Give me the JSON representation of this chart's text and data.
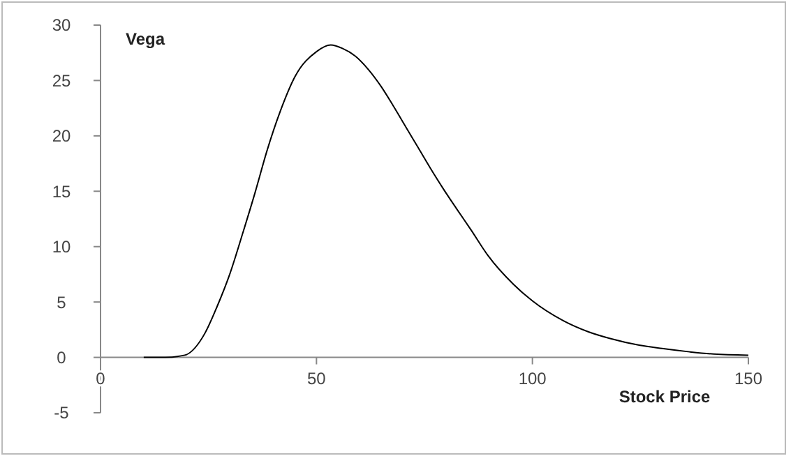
{
  "chart_data": {
    "type": "line",
    "xlabel": "Stock Price",
    "ylabel": "Vega",
    "xlim": [
      0,
      150
    ],
    "ylim": [
      -5,
      30
    ],
    "xticks": [
      0,
      50,
      100,
      150
    ],
    "yticks": [
      -5,
      0,
      5,
      10,
      15,
      20,
      25,
      30
    ],
    "grid": false,
    "marker": "none",
    "line_style": "solid",
    "series": [
      {
        "color": "#000000",
        "x": [
          10,
          15,
          19.5,
          24.2,
          27,
          30,
          33,
          35.8,
          38.5,
          41.6,
          45.1,
          50,
          53.3,
          56,
          59,
          62,
          64.9,
          67.8,
          70.7,
          73.6,
          76.5,
          79.4,
          82.3,
          85.8,
          89.7,
          95.6,
          100,
          107.2,
          113,
          118,
          124.7,
          130,
          136.4,
          142,
          150
        ],
        "values": [
          0,
          0,
          0.2,
          2.2,
          4.6,
          7.6,
          11.3,
          14.9,
          18.6,
          22.2,
          25.4,
          27.6,
          28.2,
          27.9,
          27.2,
          26,
          24.5,
          22.7,
          20.8,
          18.9,
          17,
          15.2,
          13.5,
          11.5,
          9.2,
          6.6,
          5.1,
          3.3,
          2.3,
          1.7,
          1.1,
          0.8,
          0.5,
          0.3,
          0.2
        ]
      }
    ]
  }
}
